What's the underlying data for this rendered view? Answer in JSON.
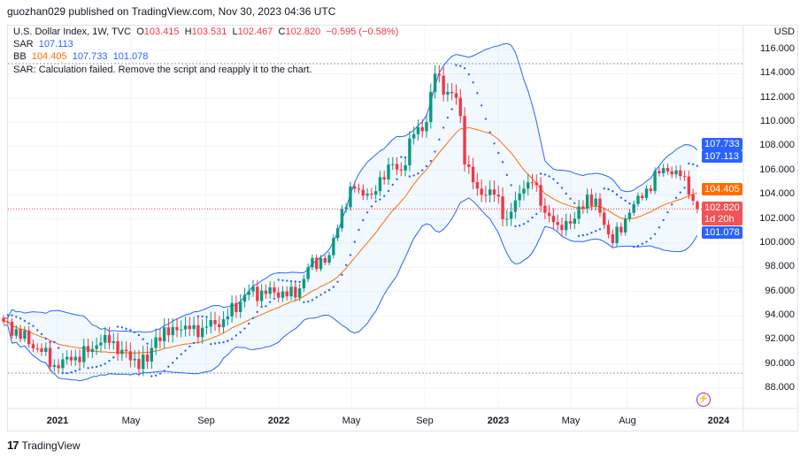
{
  "header": {
    "published": "guozhan029 published on TradingView.com, Nov 30, 2023 04:36 UTC"
  },
  "legend": {
    "symbol": "U.S. Dollar Index, 1W, TVC",
    "o_label": "O",
    "open": "103.415",
    "h_label": "H",
    "high": "103.531",
    "l_label": "L",
    "low": "102.467",
    "c_label": "C",
    "close": "102.820",
    "change": "−0.595 (−0.58%)",
    "sar_label": "SAR",
    "sar_value": "107.113",
    "bb_label": "BB",
    "bb_basis": "104.405",
    "bb_upper": "107.733",
    "bb_lower": "101.078",
    "error": "SAR: Calculation failed. Remove the script and reapply it to the chart."
  },
  "price_axis": {
    "currency": "USD",
    "ticks": [
      "116.000",
      "114.000",
      "112.000",
      "110.000",
      "108.000",
      "106.000",
      "104.000",
      "102.000",
      "100.000",
      "98.000",
      "96.000",
      "94.000",
      "92.000",
      "90.000",
      "88.000"
    ]
  },
  "price_tags": {
    "bb_upper": "107.733",
    "sar": "107.113",
    "bb_basis": "104.405",
    "last": "102.820",
    "countdown": "1d 20h",
    "bb_lower": "101.078"
  },
  "time_axis": [
    {
      "label": "2021",
      "year": true
    },
    {
      "label": "May"
    },
    {
      "label": "Sep"
    },
    {
      "label": "2022",
      "year": true
    },
    {
      "label": "May"
    },
    {
      "label": "Sep"
    },
    {
      "label": "2023",
      "year": true
    },
    {
      "label": "May"
    },
    {
      "label": "Aug"
    },
    {
      "label": "2024",
      "year": true
    }
  ],
  "footer": {
    "brand": "TradingView"
  },
  "colors": {
    "up": "#089981",
    "down": "#f23645",
    "bb": "#2962ff",
    "basis": "#ff6d00",
    "sar": "#2962ff"
  },
  "chart_data": {
    "type": "candlestick",
    "title": "U.S. Dollar Index, 1W, TVC",
    "ylim": [
      86.5,
      117.5
    ],
    "weekly_close_anchors": [
      [
        0,
        93.5
      ],
      [
        9,
        91
      ],
      [
        12,
        89.9
      ],
      [
        16,
        90.3
      ],
      [
        20,
        91
      ],
      [
        24,
        92.4
      ],
      [
        30,
        90.3
      ],
      [
        34,
        90.2
      ],
      [
        36,
        92.2
      ],
      [
        41,
        92.8
      ],
      [
        47,
        93
      ],
      [
        52,
        93.7
      ],
      [
        58,
        96
      ],
      [
        62,
        95.8
      ],
      [
        66,
        96
      ],
      [
        69,
        95.5
      ],
      [
        72,
        98
      ],
      [
        77,
        99
      ],
      [
        80,
        102.8
      ],
      [
        83,
        104.5
      ],
      [
        87,
        104
      ],
      [
        91,
        106.5
      ],
      [
        94,
        106
      ],
      [
        97,
        109
      ],
      [
        100,
        110
      ],
      [
        102,
        114
      ],
      [
        105,
        112.5
      ],
      [
        107,
        112
      ],
      [
        108,
        110.5
      ],
      [
        109,
        106.5
      ],
      [
        112,
        104.5
      ],
      [
        116,
        104
      ],
      [
        119,
        102
      ],
      [
        123,
        104.5
      ],
      [
        125,
        105
      ],
      [
        128,
        102.5
      ],
      [
        131,
        101.5
      ],
      [
        135,
        102
      ],
      [
        138,
        104
      ],
      [
        141,
        102.5
      ],
      [
        144,
        100
      ],
      [
        148,
        102.5
      ],
      [
        152,
        104.5
      ],
      [
        156,
        106.2
      ],
      [
        159,
        106
      ],
      [
        161,
        105.5
      ],
      [
        162,
        104
      ],
      [
        163,
        103.5
      ],
      [
        164,
        102.82
      ]
    ],
    "last": {
      "open": 103.415,
      "high": 103.531,
      "low": 102.467,
      "close": 102.82
    }
  }
}
